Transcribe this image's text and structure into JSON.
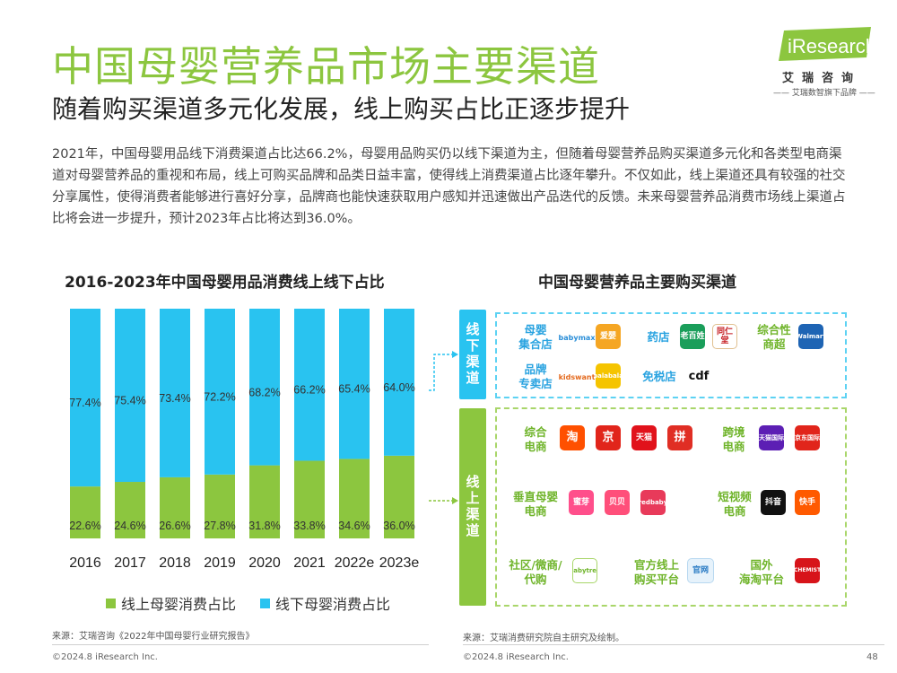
{
  "header": {
    "title": "中国母婴营养品市场主要渠道",
    "subtitle": "随着购买渠道多元化发展，线上购买占比正逐步提升",
    "logo_text": "iResearch",
    "logo_cn": "艾瑞咨询",
    "logo_tag": "—— 艾瑞数智旗下品牌 ——"
  },
  "paragraph": "2021年，中国母婴用品线下消费渠道占比达66.2%，母婴用品购买仍以线下渠道为主，但随着母婴营养品购买渠道多元化和各类型电商渠道对母婴营养品的重视和布局，线上可购买品牌和品类日益丰富，使得线上消费渠道占比逐年攀升。不仅如此，线上渠道还具有较强的社交分享属性，使得消费者能够进行喜好分享，品牌商也能快速获取用户感知并迅速做出产品迭代的反馈。未来母婴营养品消费市场线上渠道占比将会进一步提升，预计2023年占比将达到36.0%。",
  "colors": {
    "green": "#8cc63f",
    "blue": "#29c3f0"
  },
  "chart_data": {
    "type": "bar",
    "stacked": true,
    "title": "2016-2023年中国母婴用品消费线上线下占比",
    "categories": [
      "2016",
      "2017",
      "2018",
      "2019",
      "2020",
      "2021",
      "2022e",
      "2023e"
    ],
    "series": [
      {
        "name": "线上母婴消费占比",
        "values": [
          22.6,
          24.6,
          26.6,
          27.8,
          31.8,
          33.8,
          34.6,
          36.0
        ],
        "labels": [
          "22.6%",
          "24.6%",
          "26.6%",
          "27.8%",
          "31.8%",
          "33.8%",
          "34.6%",
          "36.0%"
        ],
        "color": "#8cc63f"
      },
      {
        "name": "线下母婴消费占比",
        "values": [
          77.4,
          75.4,
          73.4,
          72.2,
          68.2,
          66.2,
          65.4,
          64.0
        ],
        "labels": [
          "77.4%",
          "75.4%",
          "73.4%",
          "72.2%",
          "68.2%",
          "66.2%",
          "65.4%",
          "64.0%"
        ],
        "color": "#29c3f0"
      }
    ],
    "ylim": [
      0,
      100
    ]
  },
  "right_panel": {
    "title": "中国母婴营养品主要购买渠道",
    "offline_label": "线下渠道",
    "online_label": "线上渠道",
    "offline": [
      {
        "label": "母婴\n集合店",
        "icons": [
          "babymax",
          "爱婴"
        ]
      },
      {
        "label": "药店",
        "icons": [
          "老百姓",
          "同仁堂"
        ]
      },
      {
        "label": "综合性\n商超",
        "icons": [
          "Walmart"
        ]
      },
      {
        "label": "品牌\n专卖店",
        "icons": [
          "kidswant",
          "balabala"
        ]
      },
      {
        "label": "免税店",
        "icons": [
          "cdf"
        ]
      }
    ],
    "online": [
      {
        "label": "综合\n电商",
        "icons": [
          "淘",
          "京",
          "天猫",
          "拼"
        ]
      },
      {
        "label": "跨境\n电商",
        "icons": [
          "天猫国际",
          "京东国际"
        ]
      },
      {
        "label": "垂直母婴\n电商",
        "icons": [
          "蜜芽",
          "贝贝",
          "redbaby"
        ]
      },
      {
        "label": "短视频\n电商",
        "icons": [
          "抖音",
          "快手"
        ]
      },
      {
        "label": "社区/微商/\n代购",
        "icons": [
          "babytree"
        ]
      },
      {
        "label": "官方线上\n购买平台",
        "icons": [
          "官网"
        ]
      },
      {
        "label": "国外\n海淘平台",
        "icons": [
          "CHEMIST"
        ]
      }
    ]
  },
  "sources": {
    "left": "来源：艾瑞咨询《2022年中国母婴行业研究报告》",
    "right": "来源：艾瑞消费研究院自主研究及绘制。",
    "copy_left": "©2024.8 iResearch Inc.",
    "copy_right": "©2024.8 iResearch Inc.",
    "page": "48"
  }
}
